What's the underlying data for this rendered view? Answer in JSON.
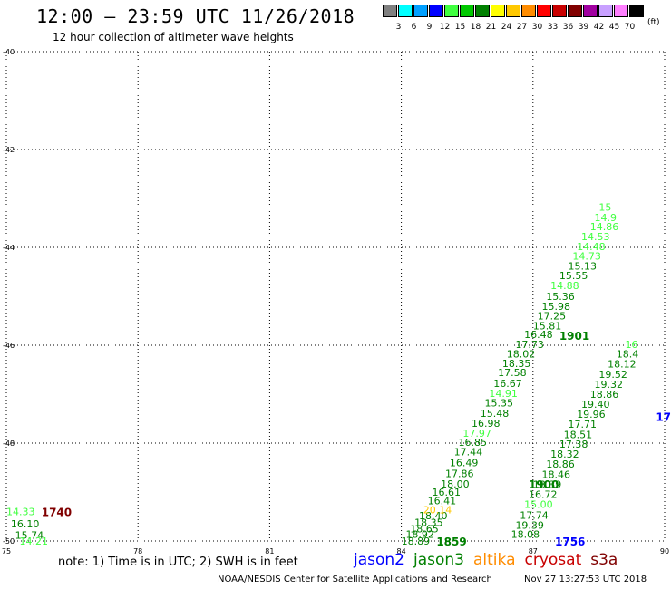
{
  "header": {
    "title": "12:00 – 23:59 UTC 11/26/2018",
    "subtitle": "12 hour collection of altimeter wave heights"
  },
  "color_scale": {
    "unit": "(ft)",
    "swatches": [
      {
        "color": "#808080",
        "label": "3"
      },
      {
        "color": "#00ffff",
        "label": "6"
      },
      {
        "color": "#00a0ff",
        "label": "9"
      },
      {
        "color": "#0000ff",
        "label": "12"
      },
      {
        "color": "#40ff40",
        "label": "15"
      },
      {
        "color": "#00c800",
        "label": "18"
      },
      {
        "color": "#008000",
        "label": "21"
      },
      {
        "color": "#ffff00",
        "label": "24"
      },
      {
        "color": "#ffc800",
        "label": "27"
      },
      {
        "color": "#ff8c00",
        "label": "30"
      },
      {
        "color": "#ff0000",
        "label": "33"
      },
      {
        "color": "#c80000",
        "label": "36"
      },
      {
        "color": "#800000",
        "label": "39"
      },
      {
        "color": "#a000a0",
        "label": "42"
      },
      {
        "color": "#c8a0ff",
        "label": "45"
      },
      {
        "color": "#ff80ff",
        "label": "70"
      },
      {
        "color": "#000000",
        "label": ""
      }
    ]
  },
  "chart_data": {
    "type": "scatter",
    "title": "12:00 – 23:59 UTC 11/26/2018",
    "subtitle": "12 hour collection of altimeter wave heights",
    "xlim": [
      75,
      90
    ],
    "ylim": [
      -50,
      -40
    ],
    "x_ticks": [
      75,
      78,
      81,
      84,
      87,
      90
    ],
    "x_tick_labels": [
      "75",
      "78",
      "81",
      "84",
      "87",
      "90"
    ],
    "y_ticks": [
      -40,
      -42,
      -44,
      -46,
      -48,
      -50
    ],
    "y_tick_labels": [
      "-40",
      "-42",
      "-44",
      "-46",
      "-48",
      "-50"
    ],
    "grid": true,
    "swh_labels": [
      {
        "x": 75.0,
        "y": -49.4,
        "text": "14.33",
        "color": "#40ff40"
      },
      {
        "x": 75.1,
        "y": -49.65,
        "text": "16.10",
        "color": "#008000"
      },
      {
        "x": 75.2,
        "y": -49.88,
        "text": "15.74",
        "color": "#008000"
      },
      {
        "x": 75.3,
        "y": -50.0,
        "text": "14.21",
        "color": "#40ff40"
      },
      {
        "x": 84.0,
        "y": -50.0,
        "text": "18.89",
        "color": "#008000"
      },
      {
        "x": 84.1,
        "y": -49.86,
        "text": "18.92",
        "color": "#008000"
      },
      {
        "x": 84.2,
        "y": -49.75,
        "text": "18.65",
        "color": "#008000"
      },
      {
        "x": 84.3,
        "y": -49.62,
        "text": "18.35",
        "color": "#008000"
      },
      {
        "x": 84.4,
        "y": -49.48,
        "text": "18.40",
        "color": "#008000"
      },
      {
        "x": 84.5,
        "y": -49.36,
        "text": "20.14",
        "color": "#ffc800"
      },
      {
        "x": 84.6,
        "y": -49.18,
        "text": "16.41",
        "color": "#008000"
      },
      {
        "x": 84.7,
        "y": -49.0,
        "text": "16.61",
        "color": "#008000"
      },
      {
        "x": 84.9,
        "y": -48.83,
        "text": "18.00",
        "color": "#008000"
      },
      {
        "x": 85.0,
        "y": -48.62,
        "text": "17.86",
        "color": "#008000"
      },
      {
        "x": 85.1,
        "y": -48.4,
        "text": "16.49",
        "color": "#008000"
      },
      {
        "x": 85.2,
        "y": -48.18,
        "text": "17.44",
        "color": "#008000"
      },
      {
        "x": 85.3,
        "y": -47.98,
        "text": "16.85",
        "color": "#008000"
      },
      {
        "x": 85.4,
        "y": -47.8,
        "text": "17.97",
        "color": "#40ff40"
      },
      {
        "x": 85.6,
        "y": -47.59,
        "text": "16.98",
        "color": "#008000"
      },
      {
        "x": 85.8,
        "y": -47.39,
        "text": "15.48",
        "color": "#008000"
      },
      {
        "x": 85.9,
        "y": -47.18,
        "text": "15.35",
        "color": "#008000"
      },
      {
        "x": 86.0,
        "y": -46.98,
        "text": "14.91",
        "color": "#40ff40"
      },
      {
        "x": 86.1,
        "y": -46.78,
        "text": "16.67",
        "color": "#008000"
      },
      {
        "x": 86.2,
        "y": -46.56,
        "text": "17.58",
        "color": "#008000"
      },
      {
        "x": 86.3,
        "y": -46.37,
        "text": "18.35",
        "color": "#008000"
      },
      {
        "x": 86.4,
        "y": -46.18,
        "text": "18.02",
        "color": "#008000"
      },
      {
        "x": 86.6,
        "y": -45.98,
        "text": "17.73",
        "color": "#008000"
      },
      {
        "x": 86.8,
        "y": -45.78,
        "text": "16.48",
        "color": "#008000"
      },
      {
        "x": 87.0,
        "y": -45.6,
        "text": "15.81",
        "color": "#008000"
      },
      {
        "x": 87.1,
        "y": -45.4,
        "text": "17.25",
        "color": "#008000"
      },
      {
        "x": 87.2,
        "y": -45.2,
        "text": "15.98",
        "color": "#008000"
      },
      {
        "x": 87.3,
        "y": -45.0,
        "text": "15.36",
        "color": "#008000"
      },
      {
        "x": 87.4,
        "y": -44.78,
        "text": "14.88",
        "color": "#40ff40"
      },
      {
        "x": 87.6,
        "y": -44.57,
        "text": "15.55",
        "color": "#008000"
      },
      {
        "x": 87.8,
        "y": -44.38,
        "text": "15.13",
        "color": "#008000"
      },
      {
        "x": 87.9,
        "y": -44.18,
        "text": "14.73",
        "color": "#40ff40"
      },
      {
        "x": 88.0,
        "y": -43.98,
        "text": "14.48",
        "color": "#40ff40"
      },
      {
        "x": 88.1,
        "y": -43.78,
        "text": "14.53",
        "color": "#40ff40"
      },
      {
        "x": 88.3,
        "y": -43.57,
        "text": "14.86",
        "color": "#40ff40"
      },
      {
        "x": 88.4,
        "y": -43.39,
        "text": "14.9",
        "color": "#40ff40"
      },
      {
        "x": 88.5,
        "y": -43.18,
        "text": "15",
        "color": "#40ff40"
      },
      {
        "x": 86.5,
        "y": -49.86,
        "text": "18.08",
        "color": "#008000"
      },
      {
        "x": 86.6,
        "y": -49.68,
        "text": "19.39",
        "color": "#008000"
      },
      {
        "x": 86.7,
        "y": -49.47,
        "text": "17.74",
        "color": "#008000"
      },
      {
        "x": 86.8,
        "y": -49.25,
        "text": "15.00",
        "color": "#40ff40"
      },
      {
        "x": 86.9,
        "y": -49.05,
        "text": "16.72",
        "color": "#008000"
      },
      {
        "x": 87.0,
        "y": -48.84,
        "text": "18.39",
        "color": "#008000"
      },
      {
        "x": 87.2,
        "y": -48.64,
        "text": "18.46",
        "color": "#008000"
      },
      {
        "x": 87.3,
        "y": -48.43,
        "text": "18.86",
        "color": "#008000"
      },
      {
        "x": 87.4,
        "y": -48.22,
        "text": "18.32",
        "color": "#008000"
      },
      {
        "x": 87.6,
        "y": -48.02,
        "text": "17.38",
        "color": "#008000"
      },
      {
        "x": 87.7,
        "y": -47.82,
        "text": "18.51",
        "color": "#008000"
      },
      {
        "x": 87.8,
        "y": -47.61,
        "text": "17.71",
        "color": "#008000"
      },
      {
        "x": 88.0,
        "y": -47.41,
        "text": "19.96",
        "color": "#008000"
      },
      {
        "x": 88.1,
        "y": -47.2,
        "text": "19.40",
        "color": "#008000"
      },
      {
        "x": 88.3,
        "y": -47.0,
        "text": "18.86",
        "color": "#008000"
      },
      {
        "x": 88.4,
        "y": -46.8,
        "text": "19.32",
        "color": "#008000"
      },
      {
        "x": 88.5,
        "y": -46.59,
        "text": "19.52",
        "color": "#008000"
      },
      {
        "x": 88.7,
        "y": -46.38,
        "text": "18.12",
        "color": "#008000"
      },
      {
        "x": 88.9,
        "y": -46.18,
        "text": "18.4",
        "color": "#008000"
      },
      {
        "x": 89.1,
        "y": -45.98,
        "text": "16",
        "color": "#40ff40"
      }
    ],
    "time_labels": [
      {
        "x": 75.8,
        "y": -49.4,
        "text": "1740",
        "color": "#800000"
      },
      {
        "x": 84.8,
        "y": -50.0,
        "text": "1859",
        "color": "#008000"
      },
      {
        "x": 86.9,
        "y": -48.83,
        "text": "1900",
        "color": "#008000"
      },
      {
        "x": 87.6,
        "y": -45.8,
        "text": "1901",
        "color": "#008000"
      },
      {
        "x": 87.5,
        "y": -50.0,
        "text": "1756",
        "color": "#0000ff"
      },
      {
        "x": 89.8,
        "y": -47.45,
        "text": "17",
        "color": "#0000ff"
      }
    ]
  },
  "footer": {
    "note": "note:  1) Time is in UTC;  2) SWH is in feet",
    "satellites": [
      {
        "name": "jason2",
        "color": "#0000ff"
      },
      {
        "name": "jason3",
        "color": "#008000"
      },
      {
        "name": "altika",
        "color": "#ff8c00"
      },
      {
        "name": "cryosat",
        "color": "#c80000"
      },
      {
        "name": "s3a",
        "color": "#800000"
      }
    ],
    "credit": "NOAA/NESDIS Center for Satellite Applications and Research",
    "timestamp": "Nov 27 13:27:53 UTC 2018"
  }
}
